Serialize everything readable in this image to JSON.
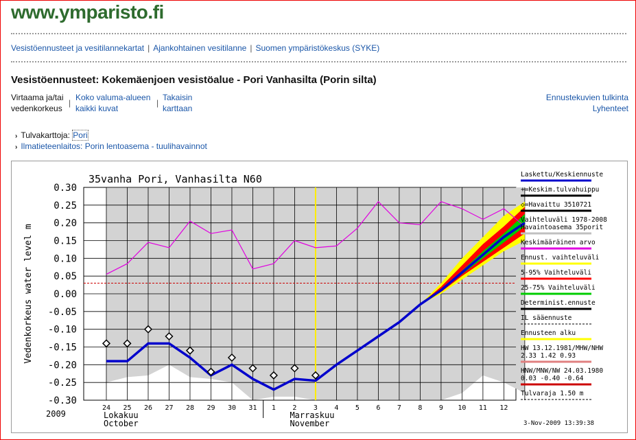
{
  "site": {
    "logo": "www.ymparisto.fi"
  },
  "topnav": [
    {
      "label": "Vesistöennusteet ja vesitilannekartat"
    },
    {
      "label": "Ajankohtainen vesitilanne"
    },
    {
      "label": "Suomen ympäristökeskus (SYKE)"
    }
  ],
  "page": {
    "title": "Vesistöennusteet: Kokemäenjoen vesistöalue - Pori Vanhasilta (Porin silta)"
  },
  "subnav": {
    "current_line1": "Virtaama ja/tai",
    "current_line2": "vedenkorkeus",
    "link1_line1": "Koko valuma-alueen",
    "link1_line2": "kaikki kuvat",
    "link2_line1": "Takaisin",
    "link2_line2": "karttaan",
    "separator": "|"
  },
  "right_links": {
    "interpretation": "Ennustekuvien tulkinta",
    "abbreviations": "Lyhenteet"
  },
  "bullets": {
    "flood_maps_label": "Tulvakarttoja:",
    "flood_maps_link": "Pori",
    "weather_link": "Ilmatieteenlaitos: Porin lentoasema - tuulihavainnot"
  },
  "chart_data": {
    "type": "line",
    "title": "35vanha Pori, Vanhasilta N60",
    "ylabel": "Vedenkorkeus water level m",
    "ylim": [
      -0.3,
      0.3
    ],
    "yticks": [
      "0.30",
      "0.25",
      "0.20",
      "0.15",
      "0.10",
      "0.05",
      "0.00",
      "-0.05",
      "-0.10",
      "-0.15",
      "-0.20",
      "-0.25",
      "-0.30"
    ],
    "xtick_labels": [
      "24",
      "25",
      "26",
      "27",
      "28",
      "29",
      "30",
      "31",
      "1",
      "2",
      "3",
      "4",
      "5",
      "6",
      "7",
      "8",
      "9",
      "10",
      "11",
      "12"
    ],
    "year_label": "2009",
    "month_labels": [
      {
        "fi": "Lokakuu",
        "en": "October"
      },
      {
        "fi": "Marraskuu",
        "en": "November"
      }
    ],
    "timestamp": "3-Nov-2009 13:39:38",
    "reference_line_value": 0.03,
    "forecast_start_day": 10,
    "grid": true,
    "legend_position": "right",
    "legend": [
      {
        "label": "Laskettu/Keskiennuste",
        "color": "#0000cc"
      },
      {
        "label": "+=Keskim.tulvahuippu",
        "color": "#000000"
      },
      {
        "label": "◇=Havaittu 3510721",
        "color": "#000000"
      },
      {
        "label": "Vaihteluväli 1978-2008\nHavaintoasema 35porit",
        "color": "#c0c0c0"
      },
      {
        "label": "Keskimääräinen arvo",
        "color": "#e000e0"
      },
      {
        "label": "Ennust. vaihteluväli",
        "color": "#ffff00"
      },
      {
        "label": "5-95% Vaihteluväli",
        "color": "#ff0000"
      },
      {
        "label": "25-75% Vaihteluväli",
        "color": "#00cc00"
      },
      {
        "label": "Determinist.ennuste",
        "color": "#000000"
      },
      {
        "label": "IL sääennuste",
        "color": "#000000"
      },
      {
        "label": "Ennusteen alku",
        "color": "#ffff00"
      },
      {
        "label": "HW 13.12.1981/MHW/NHW\n2.33 1.42 0.93",
        "color": "#e08080"
      },
      {
        "label": "HNW/MNW/NW 24.03.1980\n0.03 -0.40 -0.64",
        "color": "#cc0000"
      },
      {
        "label": "Tulvaraja 1.50 m",
        "color": "#000000"
      }
    ],
    "series": [
      {
        "name": "Laskettu/Keskiennuste",
        "x": [
          0,
          1,
          2,
          3,
          4,
          5,
          6,
          7,
          8,
          9,
          10,
          11,
          12,
          13,
          14,
          15,
          16,
          17,
          18,
          19,
          20
        ],
        "y": [
          -0.19,
          -0.19,
          -0.14,
          -0.14,
          -0.18,
          -0.23,
          -0.2,
          -0.24,
          -0.27,
          -0.24,
          -0.245,
          -0.2,
          -0.16,
          -0.12,
          -0.08,
          -0.03,
          0.01,
          0.06,
          0.11,
          0.16,
          0.2
        ]
      },
      {
        "name": "Keskimääräinen arvo",
        "x": [
          0,
          1,
          2,
          3,
          4,
          5,
          6,
          7,
          8,
          9,
          10,
          11,
          12,
          13,
          14,
          15,
          16,
          17,
          18,
          19,
          20
        ],
        "y": [
          0.055,
          0.085,
          0.145,
          0.13,
          0.205,
          0.17,
          0.18,
          0.07,
          0.085,
          0.15,
          0.13,
          0.135,
          0.185,
          0.26,
          0.2,
          0.195,
          0.26,
          0.24,
          0.21,
          0.24,
          0.19
        ]
      },
      {
        "name": "Havaittu 3510721",
        "x": [
          0,
          1,
          2,
          3,
          4,
          5,
          6,
          7,
          8,
          9,
          10
        ],
        "y": [
          -0.14,
          -0.14,
          -0.1,
          -0.12,
          -0.16,
          -0.22,
          -0.18,
          -0.21,
          -0.23,
          -0.21,
          -0.23
        ]
      }
    ],
    "range_upper": [
      -0.25,
      -0.235,
      -0.23,
      -0.2,
      -0.235,
      -0.24,
      -0.25,
      -0.3,
      -0.29,
      -0.29,
      -0.3,
      -0.3,
      -0.3,
      -0.3,
      -0.3,
      -0.3,
      -0.3,
      -0.28,
      -0.23,
      -0.25,
      -0.28
    ],
    "forecast_bands": {
      "x": [
        15,
        16,
        17,
        18,
        19,
        20
      ],
      "yellow": [
        [
          -0.03,
          -0.03
        ],
        [
          0.0,
          0.03
        ],
        [
          0.04,
          0.1
        ],
        [
          0.08,
          0.16
        ],
        [
          0.12,
          0.22
        ],
        [
          0.15,
          0.26
        ]
      ],
      "red": [
        [
          -0.03,
          -0.03
        ],
        [
          0.005,
          0.02
        ],
        [
          0.05,
          0.08
        ],
        [
          0.09,
          0.14
        ],
        [
          0.13,
          0.19
        ],
        [
          0.17,
          0.245
        ]
      ],
      "green": [
        [
          -0.03,
          -0.03
        ],
        [
          0.008,
          0.014
        ],
        [
          0.055,
          0.065
        ],
        [
          0.1,
          0.12
        ],
        [
          0.145,
          0.17
        ],
        [
          0.19,
          0.225
        ]
      ]
    }
  }
}
